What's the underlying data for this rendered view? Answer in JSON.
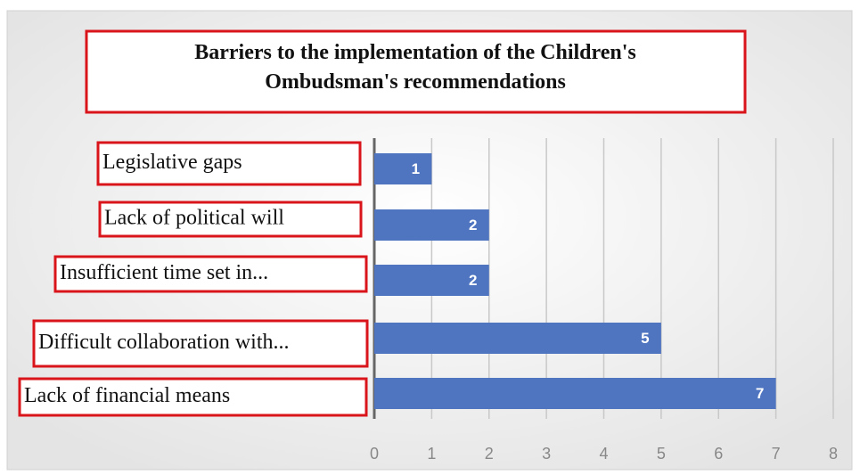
{
  "chart_data": {
    "type": "bar",
    "orientation": "horizontal",
    "title": "Barriers to the implementation of the Children's Ombudsman's recommendations",
    "categories": [
      "Legislative gaps",
      "Lack of political will",
      "Insufficient time set in...",
      "Difficult collaboration with...",
      "Lack of financial means"
    ],
    "values": [
      1,
      2,
      2,
      5,
      7
    ],
    "color": "#4f74c0",
    "xlim": [
      0,
      8
    ],
    "xticks": [
      0,
      1,
      2,
      3,
      4,
      5,
      6,
      7,
      8
    ],
    "grid": true
  }
}
